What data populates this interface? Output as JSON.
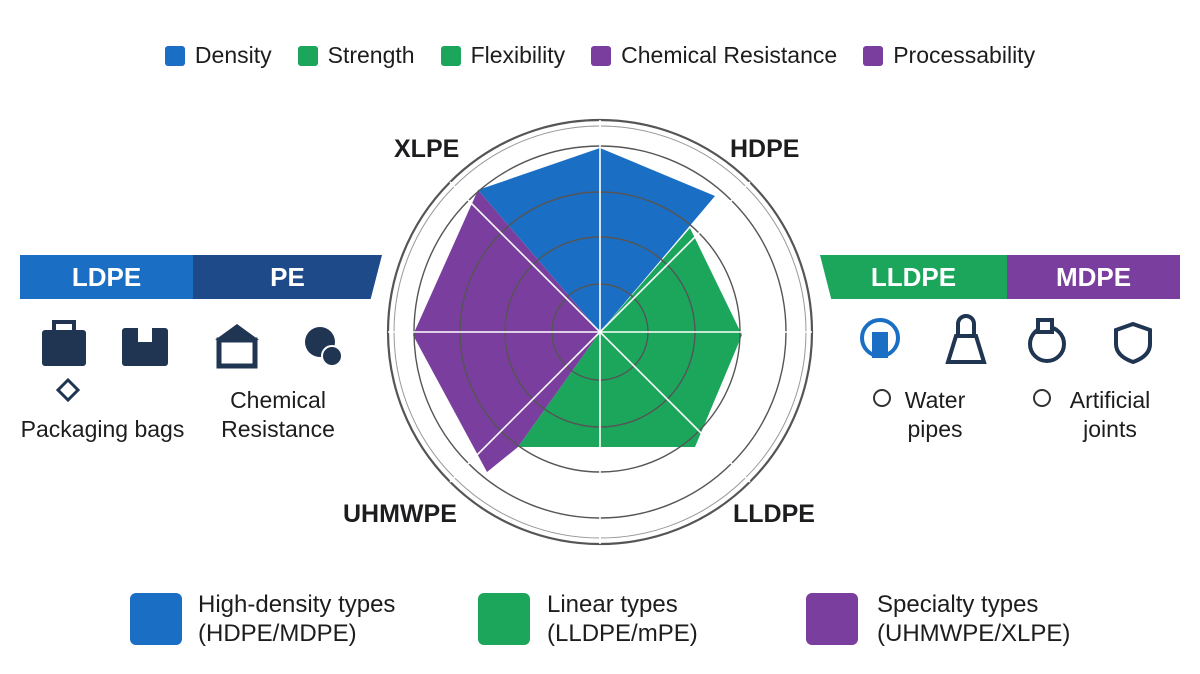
{
  "legend_top": [
    "Density",
    "Strength",
    "Flexibility",
    "Chemical Resistance",
    "Processability"
  ],
  "radar_labels": [
    "XLPE",
    "HDPE",
    "LLDPE",
    "UHMWPE"
  ],
  "left_panel": {
    "tabs": [
      "LDPE",
      "PE"
    ],
    "captions": [
      "Packaging bags",
      "Chemical Resistance"
    ]
  },
  "right_panel": {
    "tabs": [
      "LLDPE",
      "MDPE"
    ],
    "captions": [
      "Water pipes",
      "Artificial joints"
    ]
  },
  "bottom_legend": [
    {
      "label": "High-density types",
      "sub": "(HDPE/MDPE)"
    },
    {
      "label": "Linear types",
      "sub": "(LLDPE/mPE)"
    },
    {
      "label": "Specialty types",
      "sub": "(UHMWPE/XLPE)"
    }
  ]
}
